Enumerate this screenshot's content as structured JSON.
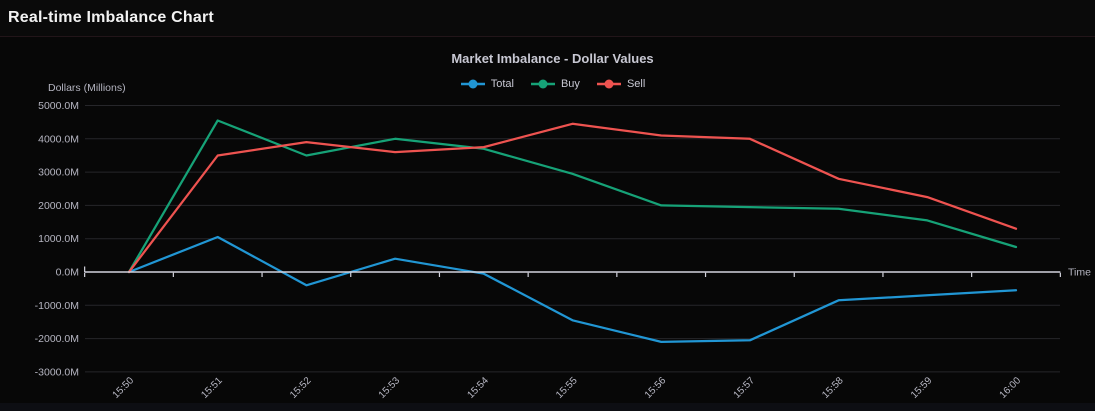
{
  "header": {
    "title": "Real-time Imbalance Chart"
  },
  "chart": {
    "title": "Market Imbalance - Dollar Values",
    "y_axis_title": "Dollars (Millions)",
    "x_axis_title": "Time",
    "colors": {
      "background": "#070707",
      "axis": "#d4d4de",
      "grid": "#26262a",
      "tick_label": "#b6b6c2",
      "title_text": "#c8c8d3",
      "total": "#2196d4",
      "buy": "#16a277",
      "sell": "#ee5350"
    }
  },
  "chart_data": {
    "type": "line",
    "title": "Market Imbalance - Dollar Values",
    "xlabel": "Time",
    "ylabel": "Dollars (Millions)",
    "categories": [
      "15:50",
      "15:51",
      "15:52",
      "15:53",
      "15:54",
      "15:55",
      "15:56",
      "15:57",
      "15:58",
      "15:59",
      "16:00"
    ],
    "series": [
      {
        "name": "Total",
        "color": "#2196d4",
        "values": [
          0,
          1050,
          -400,
          400,
          -50,
          -1450,
          -2100,
          -2050,
          -850,
          -700,
          -550
        ]
      },
      {
        "name": "Buy",
        "color": "#16a277",
        "values": [
          0,
          4550,
          3500,
          4000,
          3700,
          2950,
          2000,
          1950,
          1900,
          1550,
          750
        ]
      },
      {
        "name": "Sell",
        "color": "#ee5350",
        "values": [
          0,
          3500,
          3900,
          3600,
          3750,
          4450,
          4100,
          4000,
          2800,
          2250,
          1300
        ]
      }
    ],
    "units": "millions of dollars",
    "ylim": [
      -3000,
      5000
    ],
    "y_ticks": [
      {
        "v": 5000,
        "label": "5000.0M"
      },
      {
        "v": 4000,
        "label": "4000.0M"
      },
      {
        "v": 3000,
        "label": "3000.0M"
      },
      {
        "v": 2000,
        "label": "2000.0M"
      },
      {
        "v": 1000,
        "label": "1000.0M"
      },
      {
        "v": 0,
        "label": "0.0M"
      },
      {
        "v": -1000,
        "label": "-1000.0M"
      },
      {
        "v": -2000,
        "label": "-2000.0M"
      },
      {
        "v": -3000,
        "label": "-3000.0M"
      }
    ],
    "grid": true,
    "legend_position": "top",
    "x_tick_rotation": -45
  }
}
